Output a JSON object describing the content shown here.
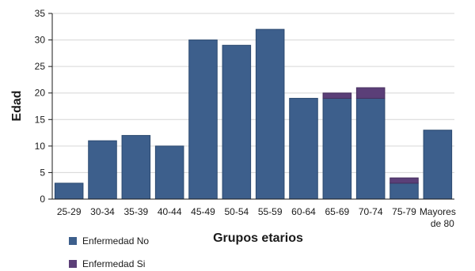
{
  "chart_data": {
    "type": "bar",
    "stacked": true,
    "categories": [
      "25-29",
      "30-34",
      "35-39",
      "40-44",
      "45-49",
      "50-54",
      "55-59",
      "60-64",
      "65-69",
      "70-74",
      "75-79",
      "Mayores de 80"
    ],
    "series": [
      {
        "name": "Enfermedad No",
        "color": "#3d5f8c",
        "values": [
          3,
          11,
          12,
          10,
          30,
          29,
          32,
          19,
          19,
          19,
          3,
          13
        ]
      },
      {
        "name": "Enfermedad Si",
        "color": "#5b3f78",
        "values": [
          0,
          0,
          0,
          0,
          0,
          0,
          0,
          0,
          1,
          2,
          1,
          0
        ]
      }
    ],
    "xlabel": "Grupos etarios",
    "ylabel": "Edad",
    "ylim": [
      0,
      35
    ],
    "yticks": [
      0,
      5,
      10,
      15,
      20,
      25,
      30,
      35
    ],
    "grid": true,
    "legend_position": "bottom-left"
  }
}
